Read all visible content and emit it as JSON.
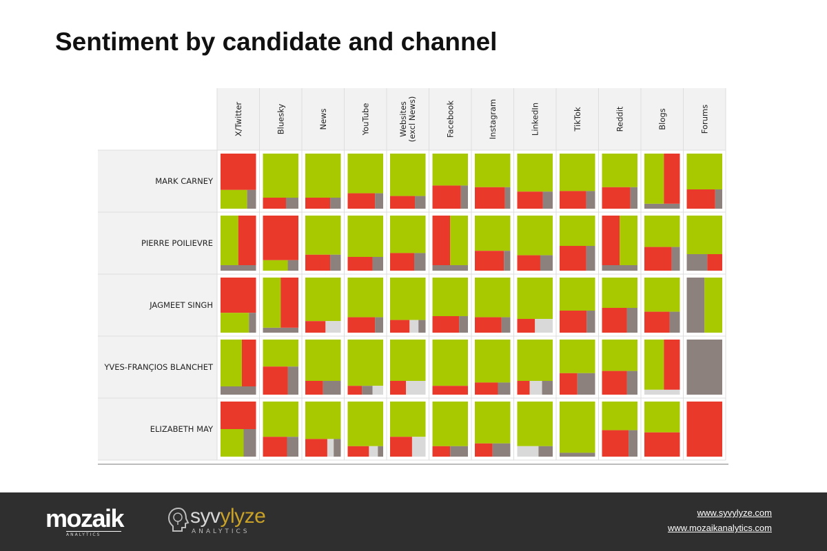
{
  "title": "Sentiment by candidate and channel",
  "colors": {
    "positive": "#a8c800",
    "negative": "#e8392b",
    "neutral": "#8c817d",
    "unknown": "#d9d9d9",
    "header_bg": "#f2f2f2",
    "footer_bg": "#2f2f2f",
    "accent": "#c9a227"
  },
  "chart_data": {
    "type": "treemap-matrix",
    "columns": [
      "X/Twitter",
      "Bluesky",
      "News",
      "YouTube",
      "Websites (excl News)",
      "Facebook",
      "Instagram",
      "LinkedIn",
      "TikTok",
      "Reddit",
      "Blogs",
      "Forums"
    ],
    "rows": [
      "MARK CARNEY",
      "PIERRE POILIEVRE",
      "JAGMEET SINGH",
      "YVES-FRANÇIOS BLANCHET",
      "ELIZABETH MAY"
    ],
    "cells": [
      [
        {
          "layout": "top",
          "first": "negative",
          "share": 0.66,
          "rest": [
            [
              "positive",
              0.75
            ],
            [
              "neutral",
              0.25
            ]
          ]
        },
        {
          "layout": "top",
          "first": "positive",
          "share": 0.8,
          "rest": [
            [
              "negative",
              0.65
            ],
            [
              "neutral",
              0.35
            ]
          ]
        },
        {
          "layout": "top",
          "first": "positive",
          "share": 0.8,
          "rest": [
            [
              "negative",
              0.7
            ],
            [
              "neutral",
              0.3
            ]
          ]
        },
        {
          "layout": "top",
          "first": "positive",
          "share": 0.72,
          "rest": [
            [
              "negative",
              0.77
            ],
            [
              "neutral",
              0.23
            ]
          ]
        },
        {
          "layout": "top",
          "first": "positive",
          "share": 0.77,
          "rest": [
            [
              "negative",
              0.7
            ],
            [
              "neutral",
              0.3
            ]
          ]
        },
        {
          "layout": "top",
          "first": "positive",
          "share": 0.58,
          "rest": [
            [
              "negative",
              0.8
            ],
            [
              "neutral",
              0.2
            ]
          ]
        },
        {
          "layout": "top",
          "first": "positive",
          "share": 0.61,
          "rest": [
            [
              "negative",
              0.85
            ],
            [
              "neutral",
              0.15
            ]
          ]
        },
        {
          "layout": "top",
          "first": "positive",
          "share": 0.69,
          "rest": [
            [
              "negative",
              0.72
            ],
            [
              "neutral",
              0.28
            ]
          ]
        },
        {
          "layout": "top",
          "first": "positive",
          "share": 0.68,
          "rest": [
            [
              "negative",
              0.75
            ],
            [
              "neutral",
              0.25
            ]
          ]
        },
        {
          "layout": "top",
          "first": "positive",
          "share": 0.61,
          "rest": [
            [
              "negative",
              0.8
            ],
            [
              "neutral",
              0.2
            ]
          ]
        },
        {
          "layout": "bottom",
          "first": "neutral",
          "share": 0.09,
          "rest": [
            [
              "positive",
              0.55
            ],
            [
              "negative",
              0.45
            ]
          ]
        },
        {
          "layout": "top",
          "first": "positive",
          "share": 0.65,
          "rest": [
            [
              "negative",
              0.8
            ],
            [
              "neutral",
              0.2
            ]
          ]
        }
      ],
      [
        {
          "layout": "bottom",
          "first": "neutral",
          "share": 0.1,
          "rest": [
            [
              "positive",
              0.5
            ],
            [
              "negative",
              0.5
            ]
          ]
        },
        {
          "layout": "top",
          "first": "negative",
          "share": 0.81,
          "rest": [
            [
              "positive",
              0.7
            ],
            [
              "neutral",
              0.3
            ]
          ]
        },
        {
          "layout": "top",
          "first": "positive",
          "share": 0.71,
          "rest": [
            [
              "negative",
              0.7
            ],
            [
              "neutral",
              0.3
            ]
          ]
        },
        {
          "layout": "top",
          "first": "positive",
          "share": 0.75,
          "rest": [
            [
              "negative",
              0.7
            ],
            [
              "neutral",
              0.3
            ]
          ]
        },
        {
          "layout": "top",
          "first": "positive",
          "share": 0.68,
          "rest": [
            [
              "negative",
              0.68
            ],
            [
              "neutral",
              0.32
            ]
          ]
        },
        {
          "layout": "bottom",
          "first": "neutral",
          "share": 0.1,
          "rest": [
            [
              "negative",
              0.5
            ],
            [
              "positive",
              0.5
            ]
          ]
        },
        {
          "layout": "top",
          "first": "positive",
          "share": 0.64,
          "rest": [
            [
              "negative",
              0.82
            ],
            [
              "neutral",
              0.18
            ]
          ]
        },
        {
          "layout": "top",
          "first": "positive",
          "share": 0.72,
          "rest": [
            [
              "negative",
              0.65
            ],
            [
              "neutral",
              0.35
            ]
          ]
        },
        {
          "layout": "top",
          "first": "positive",
          "share": 0.55,
          "rest": [
            [
              "negative",
              0.75
            ],
            [
              "neutral",
              0.25
            ]
          ]
        },
        {
          "layout": "bottom",
          "first": "neutral",
          "share": 0.1,
          "rest": [
            [
              "negative",
              0.5
            ],
            [
              "positive",
              0.5
            ]
          ]
        },
        {
          "layout": "top",
          "first": "positive",
          "share": 0.57,
          "rest": [
            [
              "negative",
              0.77
            ],
            [
              "neutral",
              0.23
            ]
          ]
        },
        {
          "layout": "top",
          "first": "positive",
          "share": 0.7,
          "rest": [
            [
              "neutral",
              0.58
            ],
            [
              "negative",
              0.42
            ]
          ]
        }
      ],
      [
        {
          "layout": "top",
          "first": "negative",
          "share": 0.64,
          "rest": [
            [
              "positive",
              0.8
            ],
            [
              "neutral",
              0.2
            ]
          ]
        },
        {
          "layout": "bottom",
          "first": "neutral",
          "share": 0.09,
          "rest": [
            [
              "positive",
              0.5
            ],
            [
              "negative",
              0.5
            ]
          ]
        },
        {
          "layout": "top",
          "first": "positive",
          "share": 0.79,
          "rest": [
            [
              "negative",
              0.57
            ],
            [
              "unknown",
              0.43
            ]
          ]
        },
        {
          "layout": "top",
          "first": "positive",
          "share": 0.72,
          "rest": [
            [
              "negative",
              0.77
            ],
            [
              "neutral",
              0.23
            ]
          ]
        },
        {
          "layout": "top",
          "first": "positive",
          "share": 0.77,
          "rest": [
            [
              "negative",
              0.55
            ],
            [
              "unknown",
              0.25
            ],
            [
              "neutral",
              0.2
            ]
          ]
        },
        {
          "layout": "top",
          "first": "positive",
          "share": 0.7,
          "rest": [
            [
              "negative",
              0.75
            ],
            [
              "neutral",
              0.25
            ]
          ]
        },
        {
          "layout": "top",
          "first": "positive",
          "share": 0.72,
          "rest": [
            [
              "negative",
              0.75
            ],
            [
              "neutral",
              0.25
            ]
          ]
        },
        {
          "layout": "top",
          "first": "positive",
          "share": 0.75,
          "rest": [
            [
              "negative",
              0.5
            ],
            [
              "unknown",
              0.5
            ]
          ]
        },
        {
          "layout": "top",
          "first": "positive",
          "share": 0.6,
          "rest": [
            [
              "negative",
              0.76
            ],
            [
              "neutral",
              0.24
            ]
          ]
        },
        {
          "layout": "top",
          "first": "positive",
          "share": 0.55,
          "rest": [
            [
              "negative",
              0.7
            ],
            [
              "neutral",
              0.3
            ]
          ]
        },
        {
          "layout": "top",
          "first": "positive",
          "share": 0.62,
          "rest": [
            [
              "negative",
              0.71
            ],
            [
              "neutral",
              0.29
            ]
          ]
        },
        {
          "layout": "left",
          "first": "neutral",
          "share": 0.5,
          "rest": [
            [
              "positive",
              1.0
            ]
          ]
        }
      ],
      [
        {
          "layout": "bottom",
          "first": "neutral",
          "share": 0.15,
          "rest": [
            [
              "positive",
              0.6
            ],
            [
              "negative",
              0.4
            ]
          ]
        },
        {
          "layout": "top",
          "first": "positive",
          "share": 0.49,
          "rest": [
            [
              "negative",
              0.7
            ],
            [
              "neutral",
              0.3
            ]
          ]
        },
        {
          "layout": "top",
          "first": "positive",
          "share": 0.75,
          "rest": [
            [
              "negative",
              0.5
            ],
            [
              "neutral",
              0.5
            ]
          ]
        },
        {
          "layout": "top",
          "first": "positive",
          "share": 0.84,
          "rest": [
            [
              "negative",
              0.4
            ],
            [
              "neutral",
              0.3
            ],
            [
              "unknown",
              0.3
            ]
          ]
        },
        {
          "layout": "top",
          "first": "positive",
          "share": 0.75,
          "rest": [
            [
              "negative",
              0.45
            ],
            [
              "unknown",
              0.55
            ]
          ]
        },
        {
          "layout": "top",
          "first": "positive",
          "share": 0.84,
          "rest": [
            [
              "negative",
              1.0
            ]
          ]
        },
        {
          "layout": "top",
          "first": "positive",
          "share": 0.78,
          "rest": [
            [
              "negative",
              0.65
            ],
            [
              "neutral",
              0.35
            ]
          ]
        },
        {
          "layout": "top",
          "first": "positive",
          "share": 0.75,
          "rest": [
            [
              "negative",
              0.35
            ],
            [
              "unknown",
              0.35
            ],
            [
              "neutral",
              0.3
            ]
          ]
        },
        {
          "layout": "top",
          "first": "positive",
          "share": 0.61,
          "rest": [
            [
              "negative",
              0.5
            ],
            [
              "neutral",
              0.5
            ]
          ]
        },
        {
          "layout": "top",
          "first": "positive",
          "share": 0.57,
          "rest": [
            [
              "negative",
              0.7
            ],
            [
              "neutral",
              0.3
            ]
          ]
        },
        {
          "layout": "bottom",
          "first": "unknown",
          "share": 0.09,
          "rest": [
            [
              "positive",
              0.55
            ],
            [
              "negative",
              0.45
            ]
          ]
        },
        {
          "layout": "top",
          "first": "neutral",
          "share": 1.0,
          "rest": []
        }
      ],
      [
        {
          "layout": "top",
          "first": "negative",
          "share": 0.5,
          "rest": [
            [
              "positive",
              0.65
            ],
            [
              "neutral",
              0.35
            ]
          ]
        },
        {
          "layout": "top",
          "first": "positive",
          "share": 0.64,
          "rest": [
            [
              "negative",
              0.68
            ],
            [
              "neutral",
              0.32
            ]
          ]
        },
        {
          "layout": "top",
          "first": "positive",
          "share": 0.68,
          "rest": [
            [
              "negative",
              0.62
            ],
            [
              "unknown",
              0.18
            ],
            [
              "neutral",
              0.2
            ]
          ]
        },
        {
          "layout": "top",
          "first": "positive",
          "share": 0.81,
          "rest": [
            [
              "negative",
              0.6
            ],
            [
              "unknown",
              0.25
            ],
            [
              "neutral",
              0.15
            ]
          ]
        },
        {
          "layout": "top",
          "first": "positive",
          "share": 0.64,
          "rest": [
            [
              "negative",
              0.62
            ],
            [
              "unknown",
              0.38
            ]
          ]
        },
        {
          "layout": "top",
          "first": "positive",
          "share": 0.81,
          "rest": [
            [
              "negative",
              0.5
            ],
            [
              "neutral",
              0.5
            ]
          ]
        },
        {
          "layout": "top",
          "first": "positive",
          "share": 0.76,
          "rest": [
            [
              "negative",
              0.5
            ],
            [
              "neutral",
              0.5
            ]
          ]
        },
        {
          "layout": "top",
          "first": "positive",
          "share": 0.81,
          "rest": [
            [
              "unknown",
              0.6
            ],
            [
              "neutral",
              0.4
            ]
          ]
        },
        {
          "layout": "top",
          "first": "positive",
          "share": 0.93,
          "rest": [
            [
              "neutral",
              1.0
            ]
          ]
        },
        {
          "layout": "top",
          "first": "positive",
          "share": 0.52,
          "rest": [
            [
              "negative",
              0.75
            ],
            [
              "neutral",
              0.25
            ]
          ]
        },
        {
          "layout": "top",
          "first": "positive",
          "share": 0.56,
          "rest": [
            [
              "negative",
              1.0
            ]
          ]
        },
        {
          "layout": "top",
          "first": "negative",
          "share": 1.0,
          "rest": []
        }
      ]
    ]
  },
  "footer": {
    "brand1_word": "mozaik",
    "brand1_sub": "ANALYTICS",
    "brand2_word_a": "syv",
    "brand2_word_b": "ylyze",
    "brand2_sub": "ANALYTICS",
    "link1": "www.syvylyze.com",
    "link2": "www.mozaikanalytics.com"
  }
}
